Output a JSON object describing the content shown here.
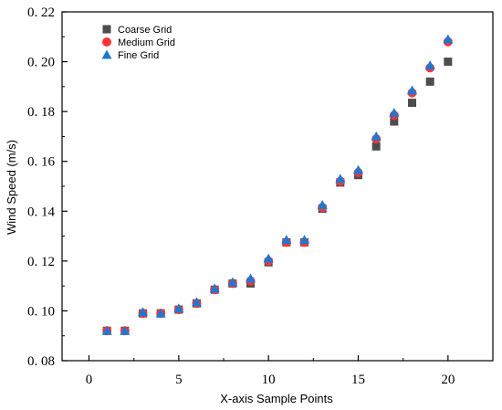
{
  "chart_data": {
    "type": "scatter",
    "title": "",
    "xlabel": "X-axis Sample Points",
    "ylabel": "Wind Speed (m/s)",
    "xlim": [
      -1.5,
      22.5
    ],
    "ylim": [
      0.08,
      0.22
    ],
    "xticks": [
      0,
      5,
      10,
      15,
      20
    ],
    "xtick_labels": [
      "0",
      "5",
      "10",
      "15",
      "20"
    ],
    "yticks": [
      0.08,
      0.1,
      0.12,
      0.14,
      0.16,
      0.18,
      0.2,
      0.22
    ],
    "ytick_labels": [
      "0. 08",
      "0. 10",
      "0. 12",
      "0. 14",
      "0. 16",
      "0. 18",
      "0. 20",
      "0. 22"
    ],
    "grid": false,
    "legend_position": "top-left",
    "x": [
      1,
      2,
      3,
      4,
      5,
      6,
      7,
      8,
      9,
      10,
      11,
      12,
      13,
      14,
      15,
      16,
      17,
      18,
      19,
      20
    ],
    "series": [
      {
        "name": "Coarse Grid",
        "marker": "square",
        "color": "#4d4d4d",
        "values": [
          0.092,
          0.092,
          0.099,
          0.099,
          0.1005,
          0.103,
          0.1085,
          0.111,
          0.111,
          0.1195,
          0.1275,
          0.1275,
          0.141,
          0.1515,
          0.1545,
          0.166,
          0.176,
          0.1835,
          0.192,
          0.2
        ]
      },
      {
        "name": "Medium Grid",
        "marker": "circle",
        "color": "#ff3333",
        "values": [
          0.092,
          0.092,
          0.099,
          0.099,
          0.1005,
          0.103,
          0.1085,
          0.111,
          0.112,
          0.12,
          0.1275,
          0.1275,
          0.1415,
          0.152,
          0.1555,
          0.169,
          0.1785,
          0.1875,
          0.1975,
          0.208
        ]
      },
      {
        "name": "Fine Grid",
        "marker": "triangle",
        "color": "#1e78d2",
        "values": [
          0.092,
          0.092,
          0.0995,
          0.099,
          0.101,
          0.1035,
          0.109,
          0.1115,
          0.113,
          0.121,
          0.1285,
          0.1285,
          0.1425,
          0.153,
          0.1565,
          0.17,
          0.1795,
          0.1885,
          0.1985,
          0.209
        ]
      }
    ]
  }
}
